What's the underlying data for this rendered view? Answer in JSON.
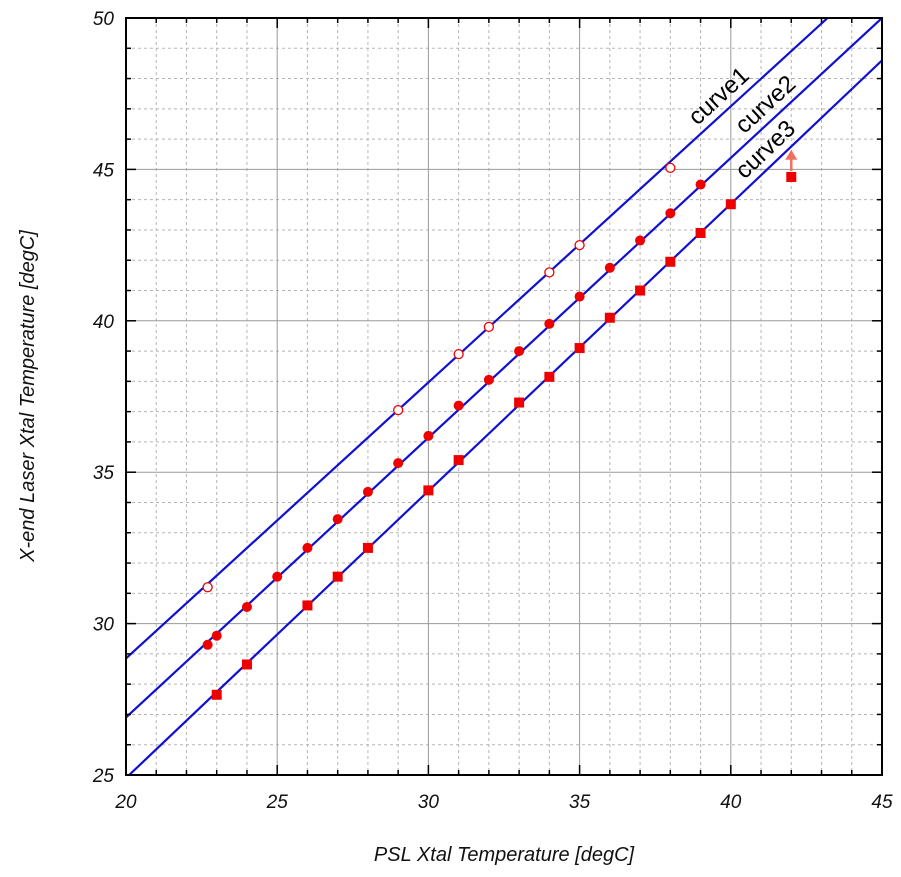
{
  "chart_data": {
    "type": "scatter",
    "xlabel": "PSL Xtal Temperature [degC]",
    "ylabel": "X-end Laser Xtal Temperature [degC]",
    "xlim": [
      20,
      45
    ],
    "ylim": [
      25,
      50
    ],
    "xticks": [
      20,
      25,
      30,
      35,
      40,
      45
    ],
    "yticks": [
      25,
      30,
      35,
      40,
      45,
      50
    ],
    "x_minor_step": 1,
    "y_minor_step": 1,
    "grid": true,
    "colors": {
      "line": "#1010d0",
      "marker": "#ee0000",
      "arrow": "#f07060",
      "grid_major": "#9a9a9a",
      "grid_minor": "#b5b5b5"
    },
    "lines": [
      {
        "name": "curve1",
        "x": [
          20,
          43.2
        ],
        "y": [
          28.85,
          50.0
        ]
      },
      {
        "name": "curve2",
        "x": [
          20,
          45
        ],
        "y": [
          26.9,
          50.0
        ]
      },
      {
        "name": "curve3",
        "x": [
          20,
          45
        ],
        "y": [
          24.9,
          48.6
        ]
      }
    ],
    "series": [
      {
        "marker": "open-circle",
        "x": [
          22.7,
          29,
          31,
          32,
          34,
          35,
          38
        ],
        "y": [
          31.2,
          37.05,
          38.9,
          39.8,
          41.6,
          42.5,
          45.05
        ]
      },
      {
        "marker": "filled-circle",
        "x": [
          22.7,
          23,
          24,
          25,
          26,
          27,
          28,
          29,
          30,
          31,
          32,
          33,
          34,
          35,
          36,
          37,
          38,
          39
        ],
        "y": [
          29.3,
          29.6,
          30.55,
          31.55,
          32.5,
          33.45,
          34.35,
          35.3,
          36.2,
          37.2,
          38.05,
          39.0,
          39.9,
          40.8,
          41.75,
          42.65,
          43.55,
          44.5
        ]
      },
      {
        "marker": "filled-square",
        "x": [
          23,
          24,
          26,
          27,
          28,
          30,
          31,
          33,
          34,
          35,
          36,
          37,
          38,
          39,
          40,
          42
        ],
        "y": [
          27.65,
          28.65,
          30.6,
          31.55,
          32.5,
          34.4,
          35.4,
          37.3,
          38.15,
          39.1,
          40.1,
          41.0,
          41.95,
          42.9,
          43.85,
          44.75
        ]
      }
    ],
    "annotations": [
      {
        "type": "arrow-up",
        "x": 42,
        "y_from": 44.95,
        "y_to": 45.55
      }
    ]
  }
}
